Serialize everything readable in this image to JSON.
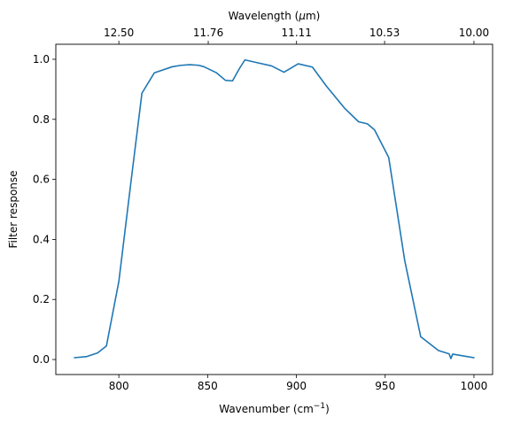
{
  "chart_data": {
    "type": "line",
    "xlabel": "Wavenumber (cm",
    "xlabel_sup": "−1",
    "xlabel_end": ")",
    "ylabel": "Filter response",
    "top_xlabel": "Wavelength (",
    "top_xlabel_mu": "μ",
    "top_xlabel_end": "m)",
    "xlim": [
      764.5,
      1010.5
    ],
    "ylim": [
      -0.05,
      1.05
    ],
    "x_ticks": [
      800,
      850,
      900,
      950,
      1000
    ],
    "x_tick_labels": [
      "800",
      "850",
      "900",
      "950",
      "1000"
    ],
    "y_ticks": [
      0.0,
      0.2,
      0.4,
      0.6,
      0.8,
      1.0
    ],
    "y_tick_labels": [
      "0.0",
      "0.2",
      "0.4",
      "0.6",
      "0.8",
      "1.0"
    ],
    "top_ticks": [
      800,
      850.34,
      900.09,
      949.67,
      1000
    ],
    "top_tick_labels": [
      "12.50",
      "11.76",
      "11.11",
      "10.53",
      "10.00"
    ],
    "grid": false,
    "line_color": "#1f77b4",
    "series": [
      {
        "x": [
          775,
          782,
          788,
          793,
          800,
          807,
          813,
          820,
          830,
          835,
          840,
          845,
          848,
          855,
          860,
          864,
          868,
          871,
          877,
          886,
          893,
          901,
          909,
          917,
          927,
          935,
          940,
          944,
          952,
          961,
          970,
          980,
          986,
          987,
          988,
          995,
          1000
        ],
        "y": [
          0.006,
          0.01,
          0.022,
          0.045,
          0.26,
          0.6,
          0.887,
          0.955,
          0.975,
          0.98,
          0.982,
          0.98,
          0.975,
          0.955,
          0.93,
          0.928,
          0.97,
          0.998,
          0.99,
          0.978,
          0.957,
          0.985,
          0.974,
          0.91,
          0.838,
          0.792,
          0.785,
          0.765,
          0.673,
          0.33,
          0.076,
          0.03,
          0.019,
          0.003,
          0.018,
          0.011,
          0.006
        ]
      }
    ]
  }
}
